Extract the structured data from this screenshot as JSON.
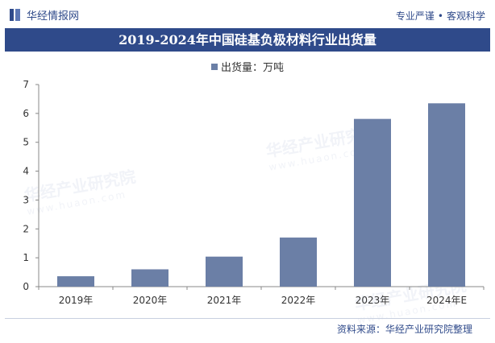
{
  "header": {
    "brand": "华经情报网",
    "slogan_left": "专业严谨",
    "slogan_dot": "•",
    "slogan_right": "客观科学"
  },
  "watermark": {
    "text": "华经产业研究院",
    "url": "www.huaon.com"
  },
  "footer": {
    "source": "资料来源：华经产业研究院整理"
  },
  "colors": {
    "brand": "#2f4a8a",
    "bar": "#6b7fa6"
  },
  "chart_data": {
    "type": "bar",
    "title": "2019-2024年中国硅基负极材料行业出货量",
    "categories": [
      "2019年",
      "2020年",
      "2021年",
      "2022年",
      "2023年",
      "2024年E"
    ],
    "series": [
      {
        "name": "出货量：万吨",
        "values": [
          0.36,
          0.6,
          1.04,
          1.7,
          5.81,
          6.35
        ]
      }
    ],
    "yticks": [
      0,
      1,
      2,
      3,
      4,
      5,
      6,
      7
    ],
    "ylim": [
      0,
      7
    ],
    "legend_position": "top-center",
    "grid": false
  }
}
